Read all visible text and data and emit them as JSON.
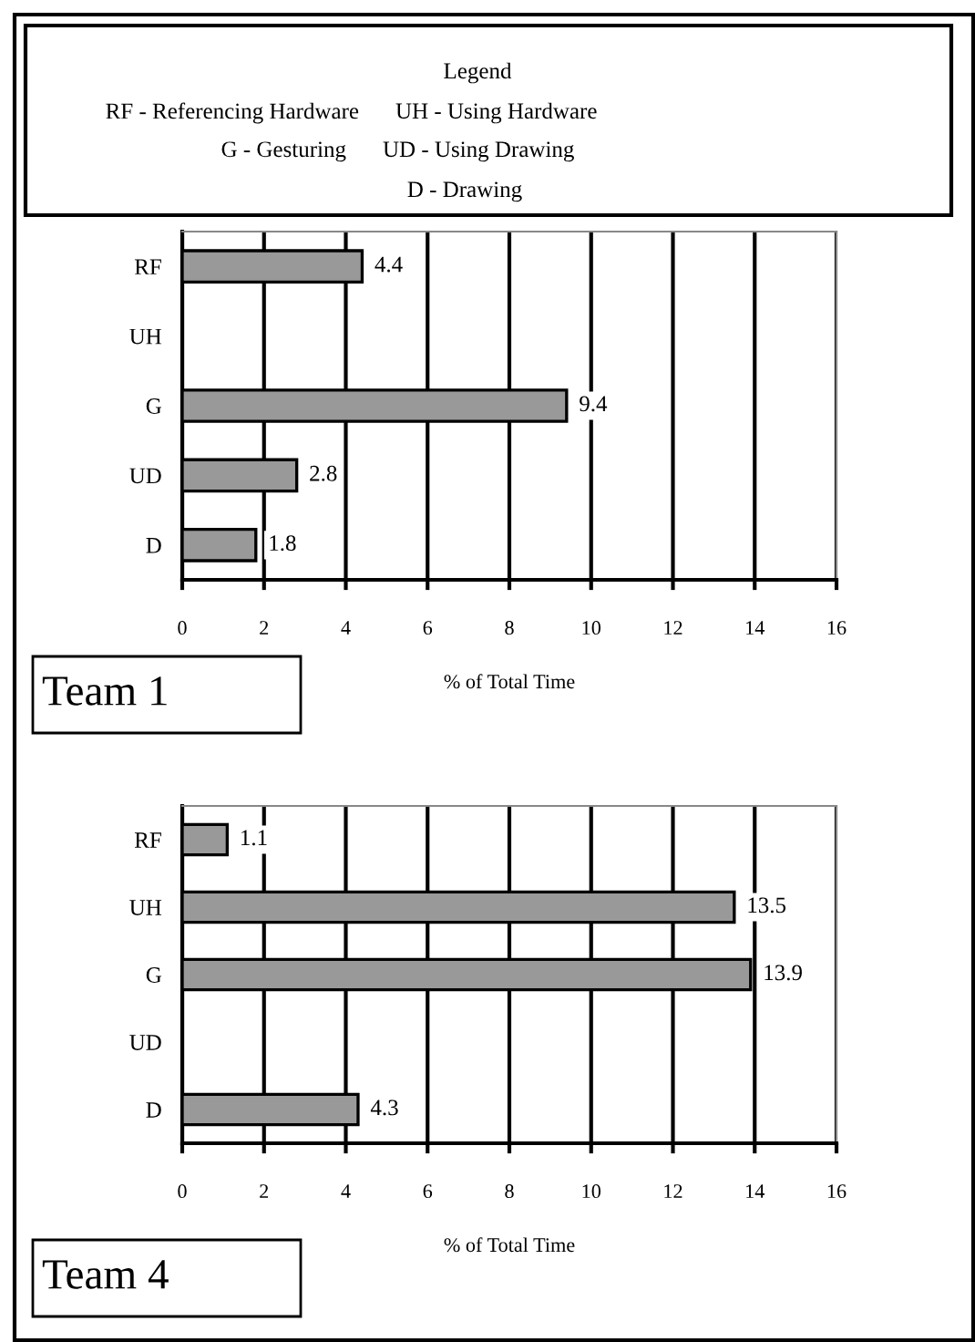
{
  "chart_data": [
    {
      "type": "other",
      "title": "Legend",
      "annotations": [
        "RF - Referencing Hardware",
        "UH - Using Hardware",
        "G - Gesturing",
        "UD - Using Drawing",
        "D - Drawing"
      ]
    },
    {
      "type": "bar",
      "orientation": "horizontal",
      "title": "Team 1",
      "xlabel": "% of Total Time",
      "categories": [
        "RF",
        "UH",
        "G",
        "UD",
        "D"
      ],
      "values": [
        4.4,
        null,
        9.4,
        2.8,
        1.8
      ],
      "color": "#999999",
      "xlim": [
        0,
        16
      ],
      "xticks": [
        0,
        2,
        4,
        6,
        8,
        10,
        12,
        14,
        16
      ],
      "grid": "x",
      "data_labels": true
    },
    {
      "type": "bar",
      "orientation": "horizontal",
      "title": "Team 4",
      "xlabel": "% of Total Time",
      "categories": [
        "RF",
        "UH",
        "G",
        "UD",
        "D"
      ],
      "values": [
        1.1,
        13.5,
        13.9,
        null,
        4.3
      ],
      "color": "#999999",
      "xlim": [
        0,
        16
      ],
      "xticks": [
        0,
        2,
        4,
        6,
        8,
        10,
        12,
        14,
        16
      ],
      "grid": "x",
      "data_labels": true
    }
  ]
}
